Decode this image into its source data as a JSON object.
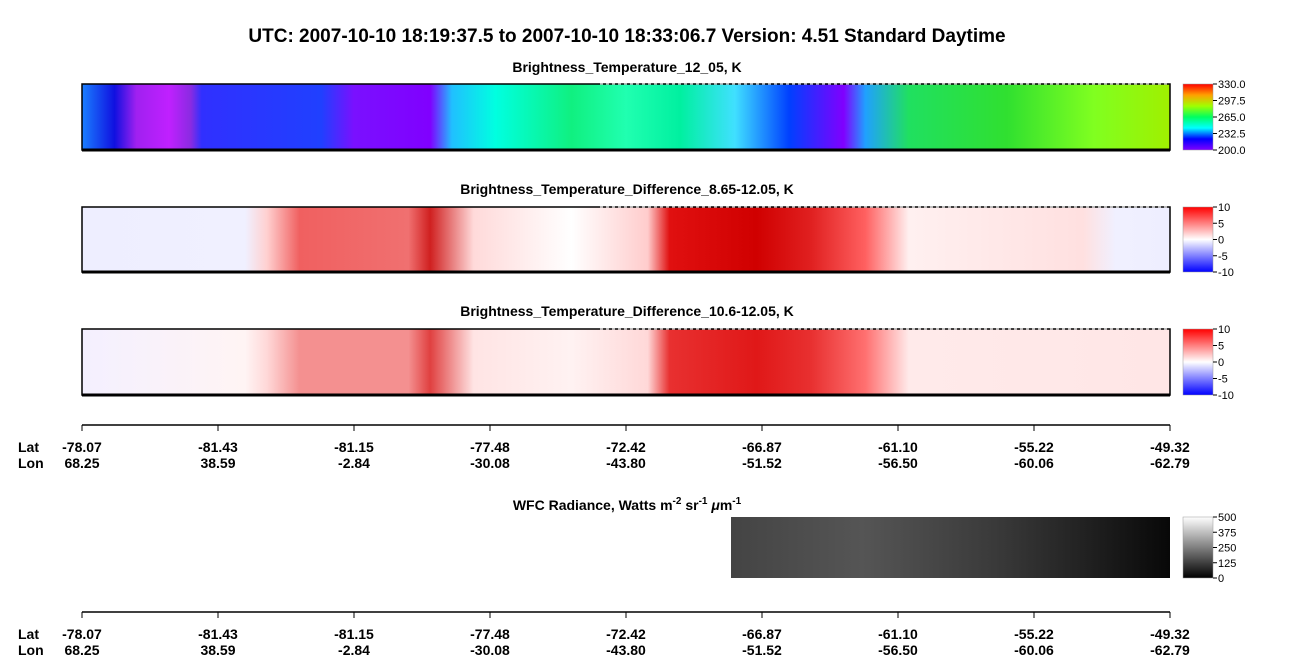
{
  "title": "UTC:  2007-10-10   18:19:37.5  to  2007-10-10   18:33:06.7    Version: 4.51  Standard Daytime",
  "panels": [
    {
      "title": "Brightness_Temperature_12_05, K",
      "clim": [
        200,
        330
      ],
      "ticks": [
        {
          "value": 330,
          "label": "330.0"
        },
        297.5,
        {
          "value": 265,
          "label": "265.0"
        },
        232.5,
        {
          "value": 200,
          "label": "200.0"
        }
      ],
      "colors": [
        "#8000ff",
        "#0000ff",
        "#00ffff",
        "#00ff60",
        "#a0ff00",
        "#ffa000",
        "#ff0000"
      ]
    },
    {
      "title": "Brightness_Temperature_Difference_8.65-12.05, K",
      "clim": [
        -10,
        10
      ],
      "ticks": [
        10,
        5,
        0,
        -5,
        -10
      ],
      "colors": [
        "#0000ff",
        "#ffffff",
        "#ff0000"
      ]
    },
    {
      "title": "Brightness_Temperature_Difference_10.6-12.05, K",
      "clim": [
        -10,
        10
      ],
      "ticks": [
        10,
        5,
        0,
        -5,
        -10
      ],
      "colors": [
        "#0000ff",
        "#ffffff",
        "#ff0000"
      ]
    }
  ],
  "wfc": {
    "title": [
      "WFC Radiance, Watts m",
      "-2",
      " sr",
      "-1",
      " μ",
      "m",
      "-1"
    ],
    "clim": [
      0,
      500
    ],
    "ticks": [
      500,
      375,
      250,
      125,
      0
    ],
    "colors": [
      "#000000",
      "#ffffff"
    ]
  },
  "along_track": {
    "labels": [
      "Lat",
      "Lon"
    ],
    "lat": [
      -78.07,
      -81.43,
      -81.15,
      -77.48,
      -72.42,
      -66.87,
      {
        "value": -61.1,
        "label": "-61.10"
      },
      -55.22,
      -49.32
    ],
    "lon": [
      68.25,
      38.59,
      -2.84,
      -30.08,
      {
        "value": -43.8,
        "label": "-43.80"
      },
      -51.52,
      {
        "value": -56.5,
        "label": "-56.50"
      },
      -60.06,
      -62.79
    ]
  }
}
